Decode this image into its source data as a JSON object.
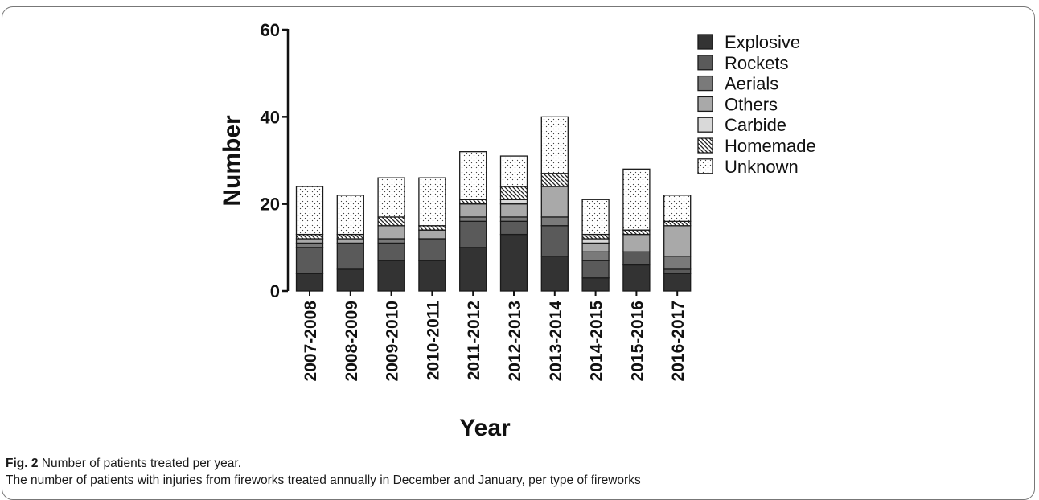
{
  "caption": {
    "label": "Fig. 2",
    "title": "Number of patients treated per year.",
    "description": "The number of patients with injuries from fireworks treated annually in December and January, per type of fireworks"
  },
  "chart_data": {
    "type": "bar",
    "stacked": true,
    "title": "",
    "xlabel": "Year",
    "ylabel": "Number",
    "ylim": [
      0,
      60
    ],
    "yticks": [
      0,
      20,
      40,
      60
    ],
    "grid": false,
    "legend_position": "top-right",
    "categories": [
      "2007-2008",
      "2008-2009",
      "2009-2010",
      "2010-2011",
      "2011-2012",
      "2012-2013",
      "2013-2014",
      "2014-2015",
      "2015-2016",
      "2016-2017"
    ],
    "series": [
      {
        "name": "Explosive",
        "fill": "#333333",
        "pattern": "solid",
        "values": [
          4,
          5,
          7,
          7,
          10,
          13,
          8,
          3,
          6,
          4
        ]
      },
      {
        "name": "Rockets",
        "fill": "#5a5a5a",
        "pattern": "solid",
        "values": [
          6,
          6,
          4,
          5,
          6,
          3,
          7,
          4,
          3,
          1
        ]
      },
      {
        "name": "Aerials",
        "fill": "#7a7a7a",
        "pattern": "solid",
        "values": [
          1,
          0,
          1,
          0,
          1,
          1,
          2,
          2,
          0,
          3
        ]
      },
      {
        "name": "Others",
        "fill": "#a9a9a9",
        "pattern": "solid",
        "values": [
          1,
          1,
          3,
          2,
          3,
          3,
          7,
          2,
          4,
          7
        ]
      },
      {
        "name": "Carbide",
        "fill": "#d9d9d9",
        "pattern": "solid",
        "values": [
          0,
          0,
          0,
          0,
          0,
          1,
          0,
          1,
          0,
          0
        ]
      },
      {
        "name": "Homemade",
        "fill": "#ffffff",
        "pattern": "hatch",
        "values": [
          1,
          1,
          2,
          1,
          1,
          3,
          3,
          1,
          1,
          1
        ]
      },
      {
        "name": "Unknown",
        "fill": "#ffffff",
        "pattern": "dots",
        "values": [
          11,
          9,
          9,
          11,
          11,
          7,
          13,
          8,
          14,
          6
        ]
      }
    ]
  }
}
